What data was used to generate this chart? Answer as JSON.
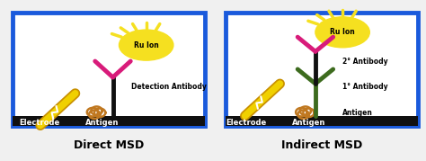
{
  "bg_color": "#f0f0f0",
  "border_color": "#1a5adc",
  "border_linewidth": 3.5,
  "bottom_bar_color": "#101010",
  "panel_titles": [
    "Direct MSD",
    "Indirect MSD"
  ],
  "panel_title_fontsize": 9,
  "panel_title_fontweight": "bold",
  "label_fontsize": 6,
  "label_fontweight": "bold",
  "ru_ion_color": "#f5e020",
  "ru_ion_text": "Ru Ion",
  "ru_ion_text_fontsize": 5.5,
  "ru_ion_text_fontweight": "bold",
  "ray_color": "#f5e020",
  "antibody_black": "#111111",
  "antibody_pink": "#d81b7a",
  "antibody_darkgreen": "#3d6b1e",
  "antigen_color": "#c07820",
  "electrode_outer": "#c89000",
  "electrode_inner": "#f0d000",
  "lightning_color": "#f5e020"
}
